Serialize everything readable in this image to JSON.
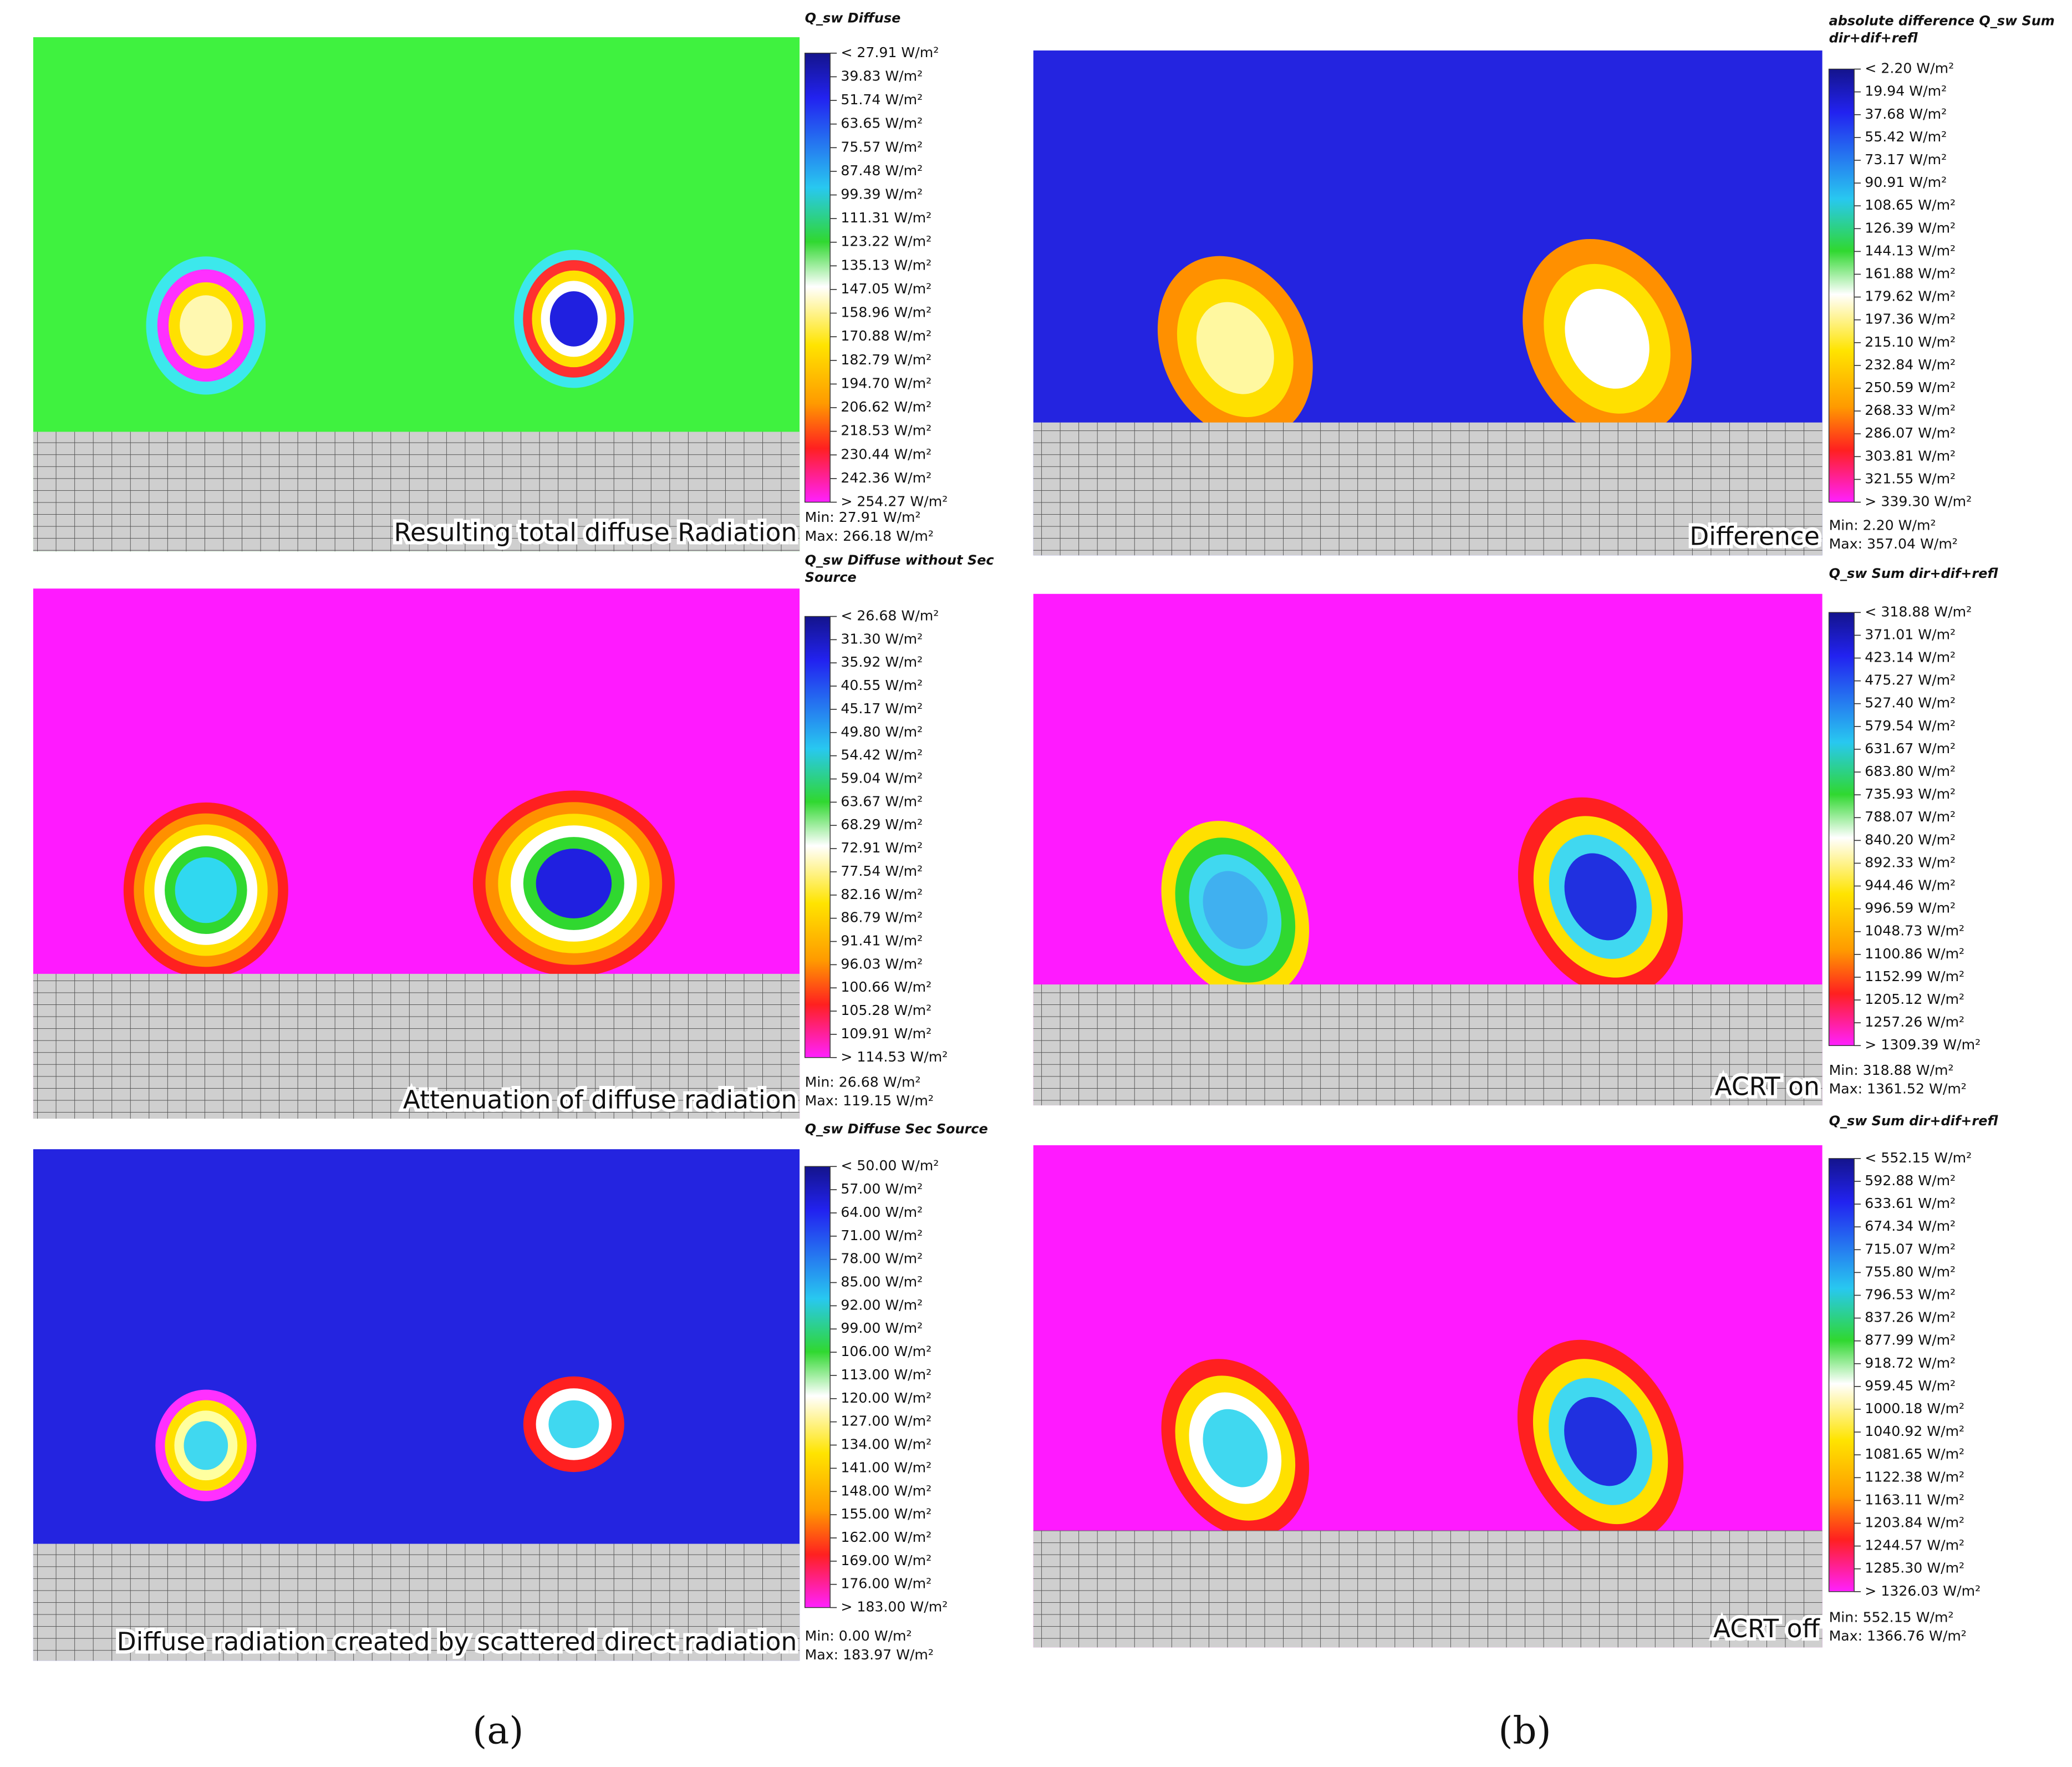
{
  "panels": [
    {
      "legend_title": "Q_sw Diffuse",
      "legend_labels": [
        "< 27.91 W/m²",
        "39.83 W/m²",
        "51.74 W/m²",
        "63.65 W/m²",
        "75.57 W/m²",
        "87.48 W/m²",
        "99.39 W/m²",
        "111.31 W/m²",
        "123.22 W/m²",
        "135.13 W/m²",
        "147.05 W/m²",
        "158.96 W/m²",
        "170.88 W/m²",
        "182.79 W/m²",
        "194.70 W/m²",
        "206.62 W/m²",
        "218.53 W/m²",
        "230.44 W/m²",
        "242.36 W/m²",
        "> 254.27 W/m²"
      ],
      "min": "Min: 27.91 W/m²",
      "max": "Max: 266.18 W/m²",
      "caption": "Resulting total diffuse Radiation"
    },
    {
      "legend_title": "Q_sw Diffuse without Sec Source",
      "legend_labels": [
        "< 26.68 W/m²",
        "31.30 W/m²",
        "35.92 W/m²",
        "40.55 W/m²",
        "45.17 W/m²",
        "49.80 W/m²",
        "54.42 W/m²",
        "59.04 W/m²",
        "63.67 W/m²",
        "68.29 W/m²",
        "72.91 W/m²",
        "77.54 W/m²",
        "82.16 W/m²",
        "86.79 W/m²",
        "91.41 W/m²",
        "96.03 W/m²",
        "100.66 W/m²",
        "105.28 W/m²",
        "109.91 W/m²",
        "> 114.53 W/m²"
      ],
      "min": "Min: 26.68 W/m²",
      "max": "Max: 119.15 W/m²",
      "caption": "Attenuation of diffuse radiation"
    },
    {
      "legend_title": "Q_sw Diffuse Sec Source",
      "legend_labels": [
        "< 50.00 W/m²",
        "57.00 W/m²",
        "64.00 W/m²",
        "71.00 W/m²",
        "78.00 W/m²",
        "85.00 W/m²",
        "92.00 W/m²",
        "99.00 W/m²",
        "106.00 W/m²",
        "113.00 W/m²",
        "120.00 W/m²",
        "127.00 W/m²",
        "134.00 W/m²",
        "141.00 W/m²",
        "148.00 W/m²",
        "155.00 W/m²",
        "162.00 W/m²",
        "169.00 W/m²",
        "176.00 W/m²",
        "> 183.00 W/m²"
      ],
      "min": "Min: 0.00 W/m²",
      "max": "Max: 183.97 W/m²",
      "caption": "Diffuse radiation created by scattered direct radiation"
    },
    {
      "legend_title": "absolute difference Q_sw Sum dir+dif+refl",
      "legend_labels": [
        "< 2.20 W/m²",
        "19.94 W/m²",
        "37.68 W/m²",
        "55.42 W/m²",
        "73.17 W/m²",
        "90.91 W/m²",
        "108.65 W/m²",
        "126.39 W/m²",
        "144.13 W/m²",
        "161.88 W/m²",
        "179.62 W/m²",
        "197.36 W/m²",
        "215.10 W/m²",
        "232.84 W/m²",
        "250.59 W/m²",
        "268.33 W/m²",
        "286.07 W/m²",
        "303.81 W/m²",
        "321.55 W/m²",
        "> 339.30 W/m²"
      ],
      "min": "Min: 2.20 W/m²",
      "max": "Max: 357.04 W/m²",
      "caption": "Difference"
    },
    {
      "legend_title": "Q_sw Sum dir+dif+refl",
      "legend_labels": [
        "< 318.88 W/m²",
        "371.01 W/m²",
        "423.14 W/m²",
        "475.27 W/m²",
        "527.40 W/m²",
        "579.54 W/m²",
        "631.67 W/m²",
        "683.80 W/m²",
        "735.93 W/m²",
        "788.07 W/m²",
        "840.20 W/m²",
        "892.33 W/m²",
        "944.46 W/m²",
        "996.59 W/m²",
        "1048.73 W/m²",
        "1100.86 W/m²",
        "1152.99 W/m²",
        "1205.12 W/m²",
        "1257.26 W/m²",
        "> 1309.39 W/m²"
      ],
      "min": "Min: 318.88 W/m²",
      "max": "Max: 1361.52 W/m²",
      "caption": "ACRT on"
    },
    {
      "legend_title": "Q_sw Sum dir+dif+refl",
      "legend_labels": [
        "< 552.15 W/m²",
        "592.88 W/m²",
        "633.61 W/m²",
        "674.34 W/m²",
        "715.07 W/m²",
        "755.80 W/m²",
        "796.53 W/m²",
        "837.26 W/m²",
        "877.99 W/m²",
        "918.72 W/m²",
        "959.45 W/m²",
        "1000.18 W/m²",
        "1040.92 W/m²",
        "1081.65 W/m²",
        "1122.38 W/m²",
        "1163.11 W/m²",
        "1203.84 W/m²",
        "1244.57 W/m²",
        "1285.30 W/m²",
        "> 1326.03 W/m²"
      ],
      "min": "Min: 552.15 W/m²",
      "max": "Max: 1366.76 W/m²",
      "caption": "ACRT off"
    }
  ],
  "labels": [
    "(a)",
    "(b)"
  ]
}
